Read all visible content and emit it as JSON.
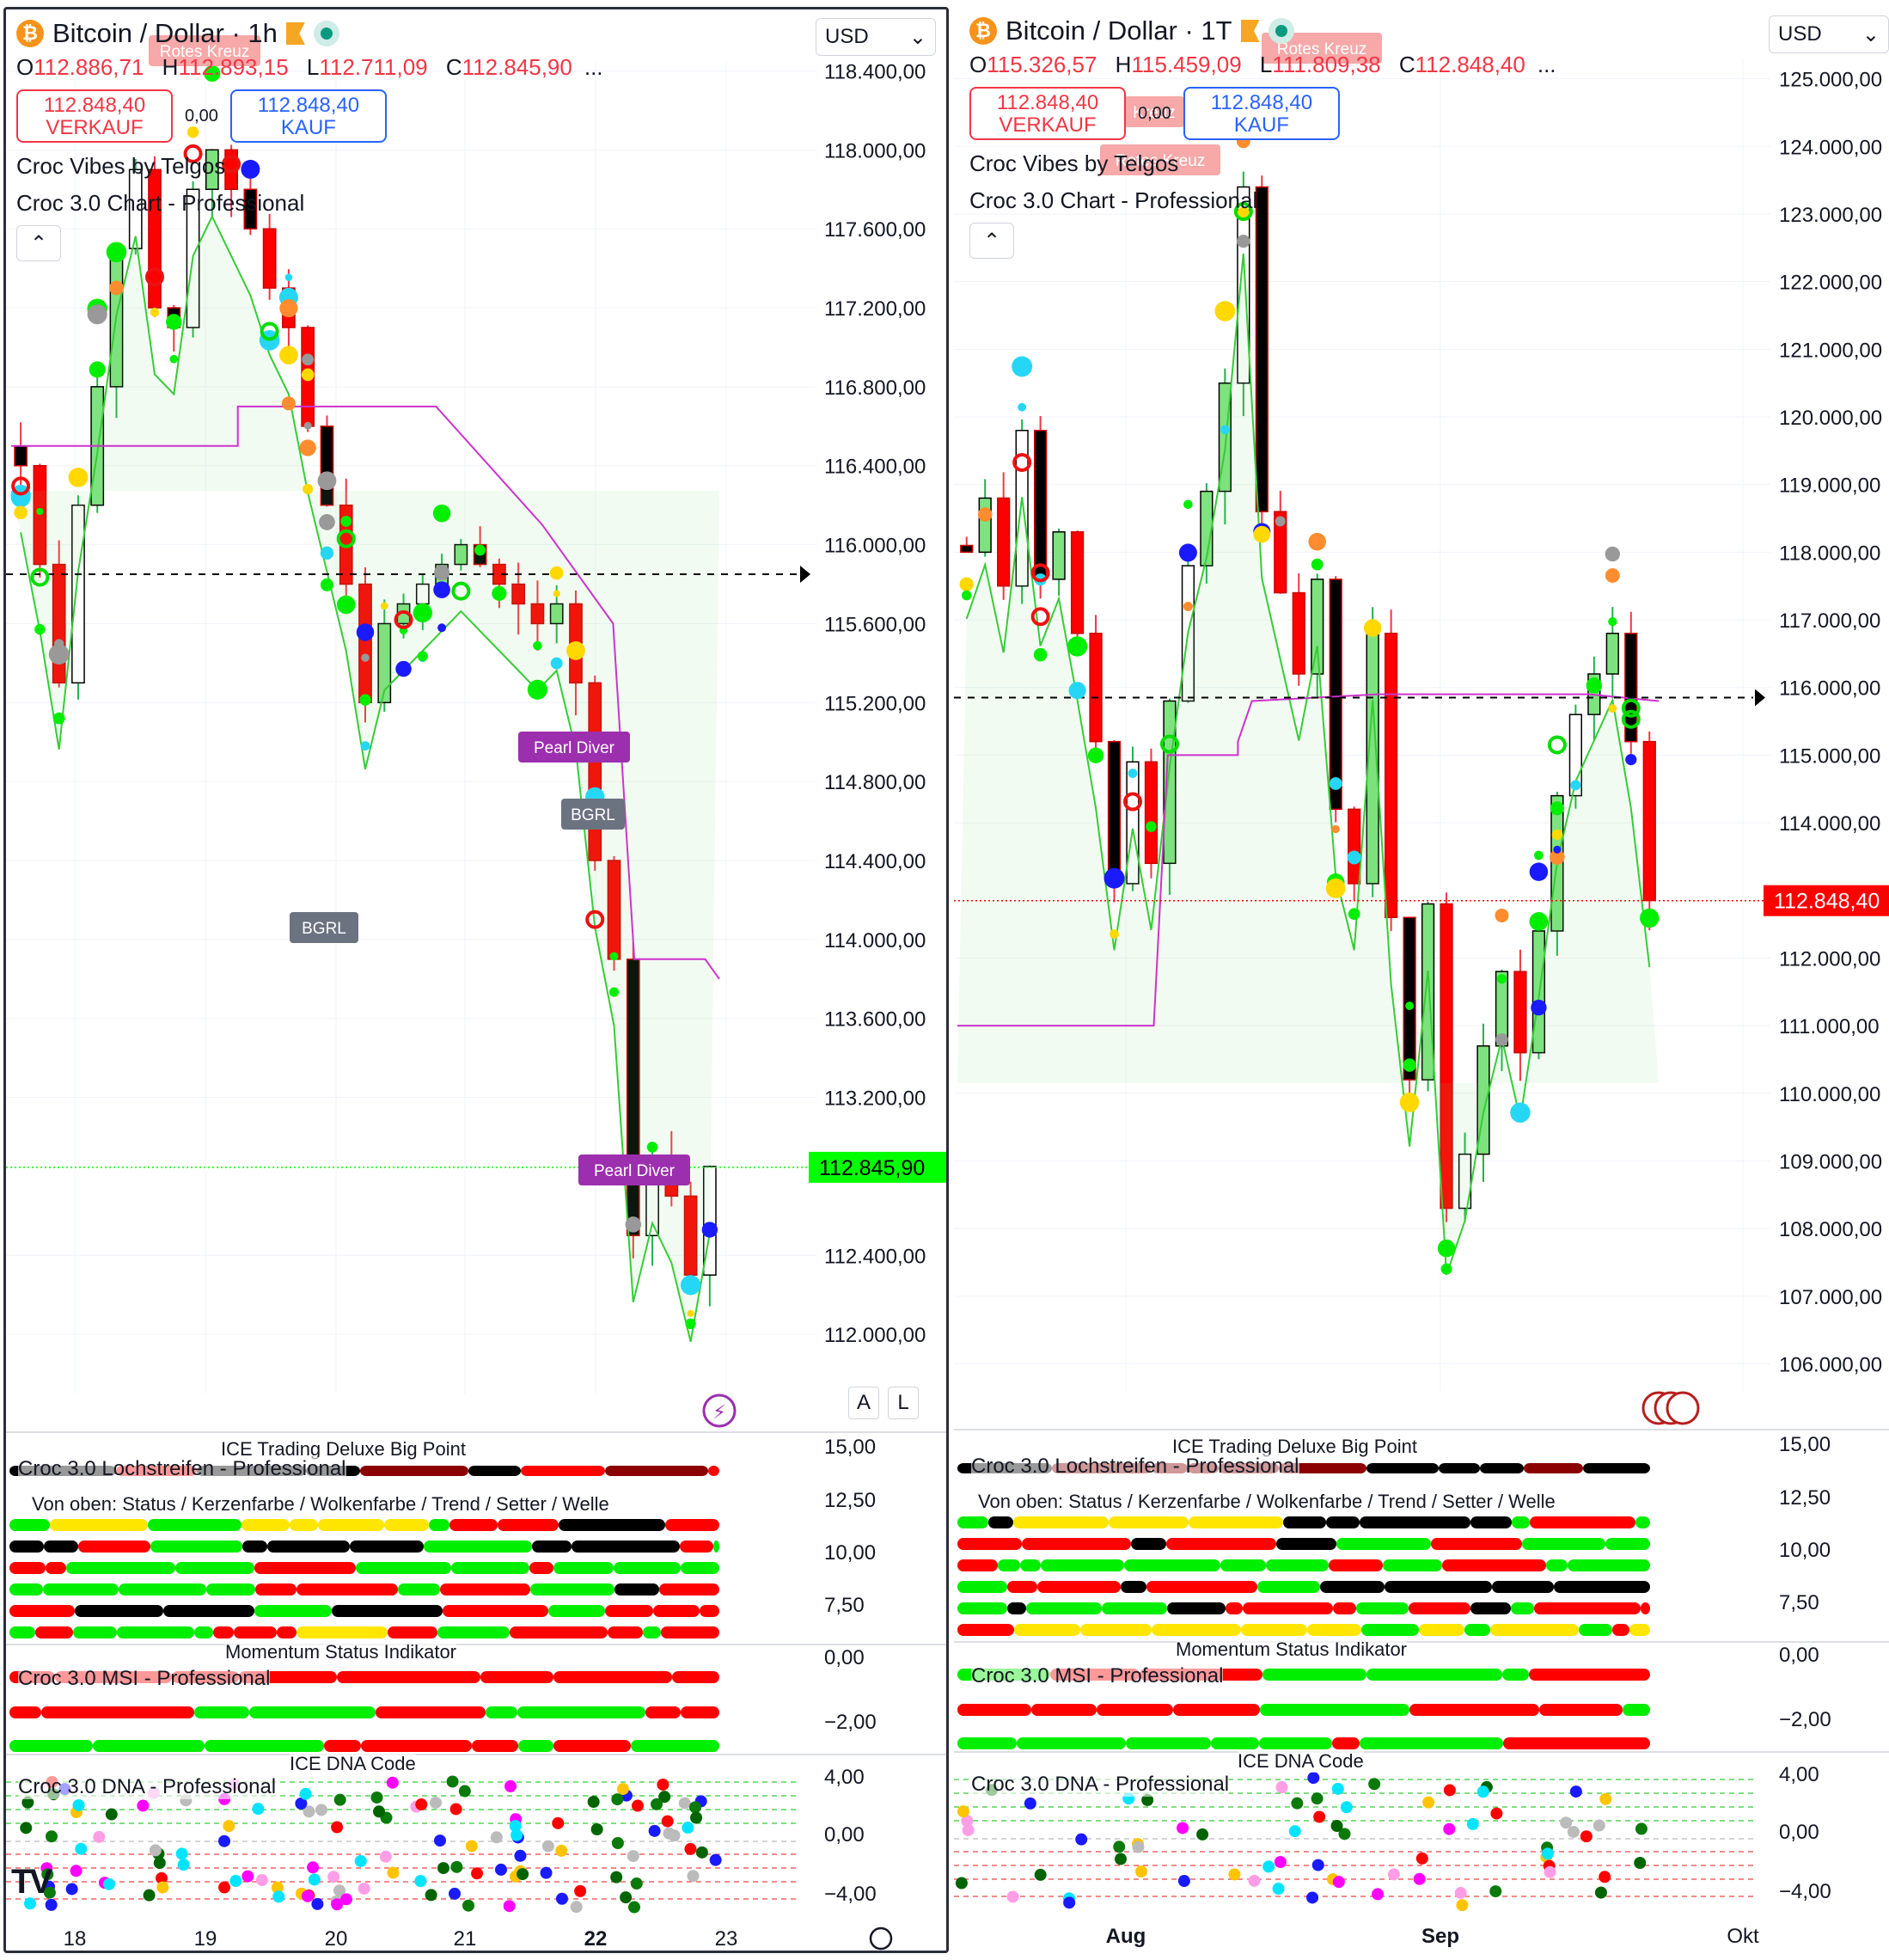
{
  "left": {
    "symbol": "Bitcoin / Dollar · 1h",
    "ohlc": {
      "o": "112.886,71",
      "h": "112.893,15",
      "l": "112.711,09",
      "c": "112.845,90"
    },
    "sell_price": "112.848,40",
    "sell_label": "VERKAUF",
    "buy_price": "112.848,40",
    "buy_label": "KAUF",
    "spread": "0,00",
    "currency": "USD",
    "indicator1": "Croc Vibes by Telgos",
    "indicator2": "Croc 3.0 Chart - Professional",
    "last_price": "112.845,90",
    "btn_a": "A",
    "btn_l": "L"
  },
  "right": {
    "symbol": "Bitcoin / Dollar · 1T",
    "ohlc": {
      "o": "115.326,57",
      "h": "115.459,09",
      "l": "111.809,38",
      "c": "112.848,40"
    },
    "sell_price": "112.848,40",
    "sell_label": "VERKAUF",
    "buy_price": "112.848,40",
    "buy_label": "KAUF",
    "spread": "0,00",
    "currency": "USD",
    "indicator1": "Croc Vibes by Telgos",
    "indicator2": "Croc 3.0 Chart - Professional",
    "last_price": "112.848,40"
  },
  "subpanes": {
    "lochstreifen_title": "ICE Trading Deluxe Big Point",
    "lochstreifen_name": "Croc 3.0 Lochstreifen - Professional",
    "rows_caption": "Von oben: Status / Kerzenfarbe / Wolkenfarbe / Trend / Setter / Welle",
    "msi_title": "Momentum Status Indikator",
    "msi_name": "Croc 3.0 MSI - Professional",
    "dna_title": "ICE DNA Code",
    "dna_name": "Croc 3.0 DNA - Professional"
  },
  "chart_data": [
    {
      "type": "candlestick",
      "title": "Bitcoin / Dollar · 1h",
      "y_ticks": [
        "118.400,00",
        "118.000,00",
        "117.600,00",
        "117.200,00",
        "116.800,00",
        "116.400,00",
        "116.000,00",
        "115.600,00",
        "115.200,00",
        "114.800,00",
        "114.400,00",
        "114.000,00",
        "113.600,00",
        "113.200,00",
        "112.400,00",
        "112.000,00"
      ],
      "ylim": [
        111.7,
        118.45
      ],
      "x_ticks": [
        "18",
        "19",
        "20",
        "21",
        "22",
        "23"
      ],
      "last_price": 112.8459,
      "dashed_level": 115.85,
      "labels": [
        {
          "text": "Rotes Kreuz"
        },
        {
          "text": "Pearl Diver"
        },
        {
          "text": "Pearl Diver"
        },
        {
          "text": "BGRL"
        },
        {
          "text": "BGRL"
        }
      ],
      "close_path": [
        116.4,
        115.9,
        115.3,
        116.2,
        116.8,
        117.5,
        117.9,
        117.2,
        117.1,
        117.8,
        118.0,
        117.8,
        117.6,
        117.3,
        117.1,
        116.6,
        116.2,
        115.8,
        115.2,
        115.6,
        115.7,
        115.8,
        115.9,
        116.0,
        115.9,
        115.8,
        115.7,
        115.6,
        115.7,
        115.3,
        114.4,
        113.9,
        112.5,
        112.9,
        112.7,
        112.3,
        112.85
      ],
      "sub_panes": [
        {
          "name": "Croc 3.0 Lochstreifen - Professional",
          "y_ticks": [
            "15,00",
            "12,50",
            "10,00",
            "7,50"
          ]
        },
        {
          "name": "Croc 3.0 MSI - Professional",
          "y_ticks": [
            "0,00",
            "−2,00"
          ]
        },
        {
          "name": "Croc 3.0 DNA - Professional",
          "y_ticks": [
            "4,00",
            "0,00",
            "−4,00"
          ]
        }
      ]
    },
    {
      "type": "candlestick",
      "title": "Bitcoin / Dollar · 1T",
      "y_ticks": [
        "125.000,00",
        "124.000,00",
        "123.000,00",
        "122.000,00",
        "121.000,00",
        "120.000,00",
        "119.000,00",
        "118.000,00",
        "117.000,00",
        "116.000,00",
        "115.000,00",
        "114.000,00",
        "112.000,00",
        "111.000,00",
        "110.000,00",
        "109.000,00",
        "108.000,00",
        "107.000,00",
        "106.000,00"
      ],
      "ylim": [
        105.6,
        125.3
      ],
      "x_ticks": [
        "Aug",
        "Sep",
        "Okt"
      ],
      "last_price": 112.8484,
      "dashed_level": 115.85,
      "labels": [
        {
          "text": "Rotes Kreuz"
        },
        {
          "text": "Rotes Kreuz"
        },
        {
          "text": "Kreuz"
        }
      ],
      "close_path": [
        118.0,
        118.8,
        117.5,
        119.8,
        117.6,
        118.3,
        116.8,
        115.2,
        113.1,
        114.9,
        113.4,
        115.8,
        117.8,
        118.9,
        120.5,
        123.4,
        118.6,
        117.4,
        116.2,
        117.6,
        114.2,
        113.1,
        116.8,
        112.6,
        110.2,
        112.8,
        108.3,
        109.1,
        110.7,
        111.8,
        110.6,
        112.4,
        114.4,
        115.6,
        116.2,
        116.8,
        115.2,
        112.85
      ],
      "sub_panes": [
        {
          "name": "Croc 3.0 Lochstreifen - Professional",
          "y_ticks": [
            "15,00",
            "12,50",
            "10,00",
            "7,50"
          ]
        },
        {
          "name": "Croc 3.0 MSI - Professional",
          "y_ticks": [
            "0,00",
            "−2,00"
          ]
        },
        {
          "name": "Croc 3.0 DNA - Professional",
          "y_ticks": [
            "4,00",
            "0,00",
            "−4,00"
          ]
        }
      ]
    }
  ]
}
